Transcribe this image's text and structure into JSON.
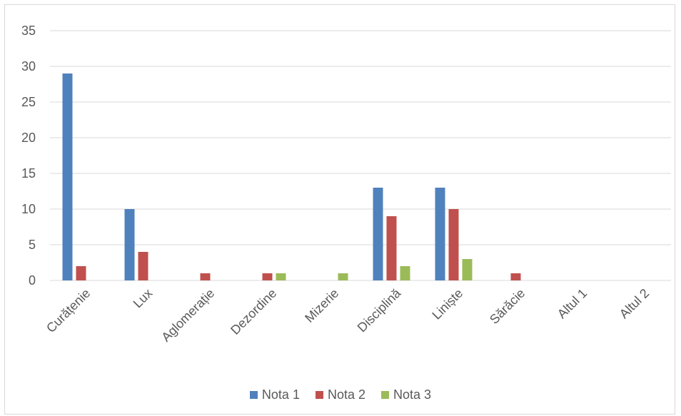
{
  "chart_data": {
    "type": "bar",
    "categories": [
      "Curățenie",
      "Lux",
      "Aglomerație",
      "Dezordine",
      "Mizerie",
      "Disciplină",
      "Liniște",
      "Sărăcie",
      "Altul 1",
      "Altul 2"
    ],
    "series": [
      {
        "name": "Nota 1",
        "color": "#4f81bd",
        "values": [
          29,
          10,
          0,
          0,
          0,
          13,
          13,
          0,
          0,
          0
        ]
      },
      {
        "name": "Nota 2",
        "color": "#c0504d",
        "values": [
          2,
          4,
          1,
          1,
          0,
          9,
          10,
          1,
          0,
          0
        ]
      },
      {
        "name": "Nota 3",
        "color": "#9bbb59",
        "values": [
          0,
          0,
          0,
          1,
          1,
          2,
          3,
          0,
          0,
          0
        ]
      }
    ],
    "yticks": [
      "0",
      "5",
      "10",
      "15",
      "20",
      "25",
      "30",
      "35"
    ],
    "ylim": [
      0,
      35
    ],
    "grid": true,
    "legend_position": "bottom"
  }
}
